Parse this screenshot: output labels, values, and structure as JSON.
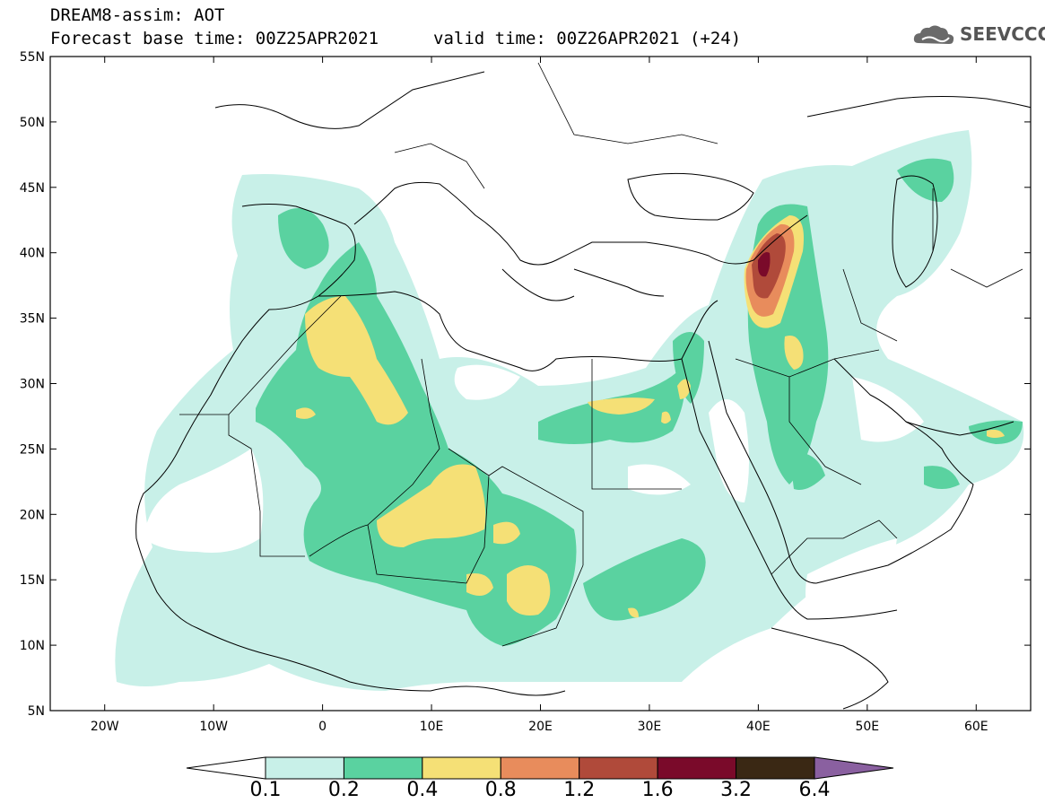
{
  "header": {
    "title": "DREAM8-assim: AOT",
    "base_time": "Forecast base time: 00Z25APR2021",
    "valid_time": "valid time: 00Z26APR2021 (+24)",
    "logo_text": "SEEVCCC"
  },
  "map": {
    "projection": "lat-lon",
    "lon_range": [
      -25,
      65
    ],
    "lat_range": [
      5,
      55
    ],
    "lat_labels": [
      "5N",
      "10N",
      "15N",
      "20N",
      "25N",
      "30N",
      "35N",
      "40N",
      "45N",
      "50N",
      "55N"
    ],
    "lon_labels": [
      "20W",
      "10W",
      "0",
      "10E",
      "20E",
      "30E",
      "40E",
      "50E",
      "60E"
    ]
  },
  "colorbar": {
    "labels": [
      "0.1",
      "0.2",
      "0.4",
      "0.8",
      "1.2",
      "1.6",
      "3.2",
      "6.4"
    ],
    "colors": [
      "#ffffff",
      "#c8f0e8",
      "#5ad2a0",
      "#f5e076",
      "#e88c5c",
      "#b04a3a",
      "#7a0a2a",
      "#3a2814",
      "#8a60a0"
    ]
  }
}
